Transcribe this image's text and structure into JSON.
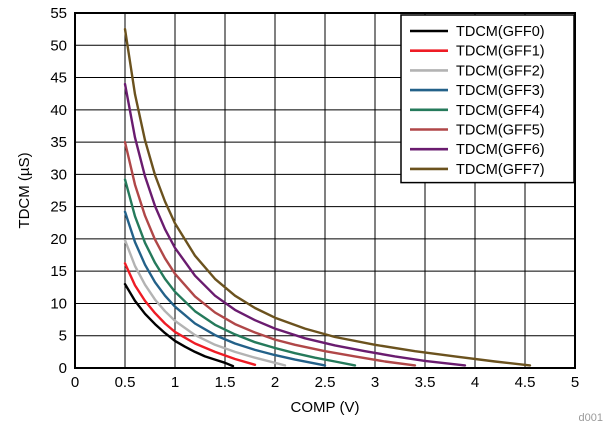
{
  "chart_data": {
    "type": "line",
    "xlabel": "COMP (V)",
    "ylabel": "TDCM (µS)",
    "xlim": [
      0,
      5
    ],
    "ylim": [
      0,
      55
    ],
    "xticks": [
      0,
      0.5,
      1,
      1.5,
      2,
      2.5,
      3,
      3.5,
      4,
      4.5,
      5
    ],
    "xtick_labels": [
      "0",
      "0.5",
      "1",
      "1.5",
      "2",
      "2.5",
      "3",
      "3.5",
      "4",
      "4.5",
      "5"
    ],
    "yticks": [
      0,
      5,
      10,
      15,
      20,
      25,
      30,
      35,
      40,
      45,
      50,
      55
    ],
    "ytick_labels": [
      "0",
      "5",
      "10",
      "15",
      "20",
      "25",
      "30",
      "35",
      "40",
      "45",
      "50",
      "55"
    ],
    "grid": true,
    "legend_position": "top-right",
    "series": [
      {
        "name": "TDCM(GFF0)",
        "color": "#000000",
        "x": [
          0.5,
          0.6,
          0.7,
          0.8,
          0.9,
          1.0,
          1.1,
          1.2,
          1.3,
          1.4,
          1.5,
          1.58
        ],
        "y": [
          13.0,
          10.4,
          8.4,
          6.8,
          5.4,
          4.2,
          3.3,
          2.5,
          1.8,
          1.3,
          0.8,
          0.3
        ]
      },
      {
        "name": "TDCM(GFF1)",
        "color": "#ee1c25",
        "x": [
          0.5,
          0.6,
          0.7,
          0.8,
          0.9,
          1.0,
          1.2,
          1.4,
          1.6,
          1.8
        ],
        "y": [
          16.2,
          12.8,
          10.4,
          8.5,
          6.9,
          5.6,
          3.8,
          2.5,
          1.4,
          0.5
        ]
      },
      {
        "name": "TDCM(GFF2)",
        "color": "#b3b3b3",
        "x": [
          0.5,
          0.6,
          0.7,
          0.8,
          0.9,
          1.0,
          1.2,
          1.4,
          1.6,
          1.8,
          2.0,
          2.1
        ],
        "y": [
          19.8,
          15.8,
          12.9,
          10.6,
          8.8,
          7.3,
          5.1,
          3.6,
          2.5,
          1.6,
          0.8,
          0.4
        ]
      },
      {
        "name": "TDCM(GFF3)",
        "color": "#236189",
        "x": [
          0.5,
          0.6,
          0.7,
          0.8,
          0.9,
          1.0,
          1.2,
          1.4,
          1.6,
          1.8,
          2.0,
          2.2,
          2.5
        ],
        "y": [
          24.2,
          19.5,
          16.0,
          13.3,
          11.2,
          9.5,
          6.9,
          5.1,
          3.8,
          2.8,
          2.0,
          1.3,
          0.4
        ]
      },
      {
        "name": "TDCM(GFF4)",
        "color": "#257a5b",
        "x": [
          0.5,
          0.6,
          0.7,
          0.8,
          0.9,
          1.0,
          1.2,
          1.4,
          1.6,
          1.8,
          2.0,
          2.2,
          2.4,
          2.6,
          2.8
        ],
        "y": [
          29.2,
          23.5,
          19.4,
          16.3,
          13.8,
          11.8,
          8.8,
          6.7,
          5.2,
          4.0,
          3.1,
          2.3,
          1.6,
          1.0,
          0.4
        ]
      },
      {
        "name": "TDCM(GFF5)",
        "color": "#b04748",
        "x": [
          0.5,
          0.6,
          0.7,
          0.8,
          0.9,
          1.0,
          1.2,
          1.4,
          1.6,
          1.8,
          2.0,
          2.2,
          2.5,
          2.8,
          3.1,
          3.4
        ],
        "y": [
          35.0,
          28.4,
          23.6,
          19.9,
          17.0,
          14.6,
          11.1,
          8.6,
          6.8,
          5.5,
          4.4,
          3.6,
          2.6,
          1.8,
          1.0,
          0.4
        ]
      },
      {
        "name": "TDCM(GFF6)",
        "color": "#6a1c6f",
        "x": [
          0.5,
          0.6,
          0.7,
          0.8,
          0.9,
          1.0,
          1.2,
          1.4,
          1.6,
          1.8,
          2.0,
          2.3,
          2.6,
          2.9,
          3.2,
          3.5,
          3.9
        ],
        "y": [
          44.0,
          35.7,
          29.7,
          25.1,
          21.5,
          18.6,
          14.3,
          11.2,
          9.0,
          7.4,
          6.1,
          4.6,
          3.5,
          2.6,
          1.8,
          1.1,
          0.4
        ]
      },
      {
        "name": "TDCM(GFF7)",
        "color": "#6b521e",
        "x": [
          0.5,
          0.6,
          0.7,
          0.8,
          0.9,
          1.0,
          1.2,
          1.4,
          1.6,
          1.8,
          2.0,
          2.3,
          2.6,
          3.0,
          3.4,
          3.8,
          4.2,
          4.55
        ],
        "y": [
          52.5,
          42.4,
          35.3,
          29.9,
          25.8,
          22.4,
          17.4,
          13.8,
          11.2,
          9.3,
          7.8,
          6.1,
          4.8,
          3.6,
          2.6,
          1.8,
          1.0,
          0.4
        ]
      }
    ]
  },
  "figure_id": "d001"
}
